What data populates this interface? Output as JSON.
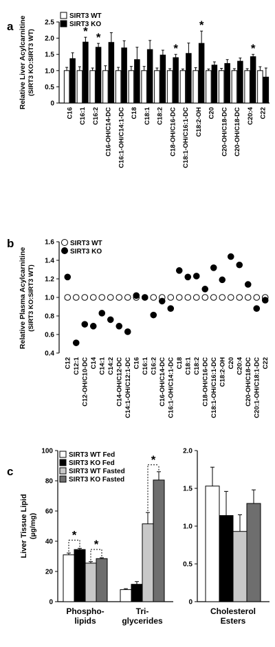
{
  "chart_data": [
    {
      "panel": "a",
      "type": "bar",
      "ylabel": "Relative Liver Acylcarnitine",
      "ylabel2": "(SIRT3 KO:SIRT3 WT)",
      "ylim": [
        0,
        2.5
      ],
      "yticks": [
        "0",
        "0.5",
        "1.0",
        "1.5",
        "2.0",
        "2.5"
      ],
      "legend": [
        "SIRT3 WT",
        "SIRT3 KO"
      ],
      "legend_position": "top-left",
      "categories": [
        "C16",
        "C16:1",
        "C16:2",
        "C16-OH/C14-DC",
        "C16:1-OH/C14:1-DC",
        "C18",
        "C18:1",
        "C18:2",
        "C18-OH/C16-DC",
        "C18:1-OH/C16:1-DC",
        "C18:2-OH",
        "C20",
        "C20-OH/C18-DC",
        "C20-OH/C18-DC",
        "C20:4",
        "C22"
      ],
      "series": [
        {
          "name": "SIRT3 WT",
          "values": [
            1,
            1,
            1,
            1,
            1,
            1,
            1,
            1,
            1,
            1,
            1,
            1,
            1,
            1,
            1,
            1
          ],
          "errors": [
            0.1,
            0.12,
            0.08,
            0.15,
            0.1,
            0.13,
            0.13,
            0.08,
            0.06,
            0.05,
            0.09,
            0.05,
            0.07,
            0.06,
            0.06,
            0.12
          ]
        },
        {
          "name": "SIRT3 KO",
          "values": [
            1.37,
            1.88,
            1.72,
            1.87,
            1.7,
            1.34,
            1.65,
            1.48,
            1.4,
            1.53,
            1.84,
            1.17,
            1.22,
            1.29,
            1.43,
            0.8
          ]
        }
      ],
      "ko_errors": [
        0.18,
        0.15,
        0.12,
        0.3,
        0.22,
        0.38,
        0.28,
        0.15,
        0.1,
        0.32,
        0.38,
        0.1,
        0.12,
        0.1,
        0.07,
        0.28
      ],
      "significant": [
        false,
        true,
        true,
        false,
        false,
        false,
        false,
        false,
        true,
        false,
        true,
        false,
        false,
        false,
        true,
        false
      ],
      "star": "*"
    },
    {
      "panel": "b",
      "type": "scatter",
      "ylabel": "Relative Plasma Acylcarnitine",
      "ylabel2": "(SIRT3 KO:SIRT3 WT)",
      "ylim": [
        0.4,
        1.6
      ],
      "yticks": [
        "0.4",
        "0.6",
        "0.8",
        "1.0",
        "1.2",
        "1.4",
        "1.6"
      ],
      "legend": [
        "SIRT3 WT",
        "SIRT3 KO"
      ],
      "legend_position": "top-left",
      "categories": [
        "C12",
        "C12:1",
        "C12-OH/C10-DC",
        "C14",
        "C14:1",
        "C14:2",
        "C14-OH/C12-DC",
        "C14:1-OH/C12:1-DC",
        "C16",
        "C16:1",
        "C16:2",
        "C16-OH/C14-DC",
        "C16:1-OH/C14:1-DC",
        "C18",
        "C18:1",
        "C18:2",
        "C18-OH/C16-DC",
        "C18:1-OH/C16:1-DC",
        "C18:2-OH",
        "C20",
        "C20:4",
        "C20-OH/C18-DC",
        "C20:1-OH/C18:1-DC",
        "C22"
      ],
      "series": [
        {
          "name": "SIRT3 WT",
          "values": [
            1,
            1,
            1,
            1,
            1,
            1,
            1,
            1,
            1,
            1,
            1,
            1,
            1,
            1,
            1,
            1,
            1,
            1,
            1,
            1,
            1,
            1,
            1,
            1
          ]
        },
        {
          "name": "SIRT3 KO",
          "values": [
            1.22,
            0.51,
            0.71,
            0.69,
            0.83,
            0.76,
            0.69,
            0.63,
            1.02,
            1.0,
            0.81,
            0.96,
            0.88,
            1.29,
            1.22,
            1.23,
            1.09,
            1.32,
            1.19,
            1.44,
            1.35,
            1.14,
            0.88,
            0.97
          ]
        }
      ]
    },
    {
      "panel": "c",
      "type": "bar",
      "ylabel": "Liver Tissue Lipid",
      "ylabel2": "(µg/mg)",
      "ylim": [
        0,
        100
      ],
      "yticks": [
        "0",
        "20",
        "40",
        "60",
        "80",
        "100"
      ],
      "legend": [
        "SIRT3 WT Fed",
        "SIRT3 KO Fed",
        "SIRT3 WT Fasted",
        "SIRT3 KO Fasted"
      ],
      "legend_position": "top-left",
      "categories": [
        {
          "line1": "Phospho-",
          "line2": "lipids"
        },
        {
          "line1": "Tri-",
          "line2": "glycerides"
        }
      ],
      "values": [
        [
          31,
          34.5,
          25.5,
          28.5
        ],
        [
          8,
          11.5,
          51.5,
          80.5
        ]
      ],
      "errors": [
        [
          1.2,
          0.8,
          1,
          0.6
        ],
        [
          0.6,
          1.8,
          7.5,
          5.5
        ]
      ],
      "star": "*",
      "colors": [
        "#ffffff",
        "#000000",
        "#c8c8c8",
        "#6e6e6e"
      ]
    },
    {
      "panel": "c-right",
      "type": "bar",
      "ylim": [
        0,
        2.0
      ],
      "yticks": [
        "0",
        "0.5",
        "1.0",
        "1.5",
        "2.0"
      ],
      "categories": [
        {
          "line1": "Cholesterol",
          "line2": "Esters"
        }
      ],
      "values": [
        [
          1.53,
          1.14,
          0.93,
          1.3
        ]
      ],
      "errors": [
        [
          0.25,
          0.32,
          0.22,
          0.18
        ]
      ]
    }
  ],
  "panel_labels": {
    "a": "a",
    "b": "b",
    "c": "c"
  }
}
